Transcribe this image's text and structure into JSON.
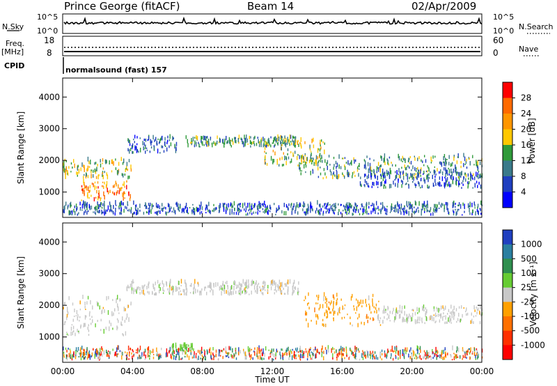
{
  "header": {
    "station": "Prince George (fitACF)",
    "beam": "Beam 14",
    "date": "02/Apr/2009"
  },
  "strip_panels": {
    "nsky_label": "N.Sky",
    "nsky_ticks": [
      "10^5",
      "10^0"
    ],
    "nsearch_label": "N.Search",
    "nsearch_ticks": [
      "10^5",
      "10^0"
    ],
    "freq_label": "Freq.",
    "freq_unit": "[MHz]",
    "freq_ticks": [
      "18",
      "8"
    ],
    "nave_label": "Nave",
    "nave_ticks": [
      "60",
      "0"
    ],
    "cpid_label": "CPID",
    "cpid_text": "normalsound (fast) 157"
  },
  "chart_data": [
    {
      "type": "heatmap",
      "name": "power",
      "ylabel": "Slant Range [km]",
      "yticks": [
        1000,
        2000,
        3000,
        4000
      ],
      "ylim": [
        200,
        4600
      ],
      "xlabel": "",
      "xticks": [
        "00:00",
        "04:00",
        "08:00",
        "12:00",
        "16:00",
        "20:00",
        "00:00"
      ],
      "xlim_hours": [
        0,
        24
      ],
      "colorbar": {
        "label": "Power [dB]",
        "ticks": [
          "28",
          "24",
          "20",
          "16",
          "12",
          "8",
          "4"
        ],
        "colors": [
          "#ff0000",
          "#ff6a00",
          "#ff9600",
          "#ffc800",
          "#2f9a3a",
          "#3a7a8a",
          "#1f3fbf",
          "#0000ff"
        ]
      },
      "regions": [
        {
          "t": [
            0.0,
            3.9
          ],
          "r": [
            1400,
            2000
          ],
          "level": 4
        },
        {
          "t": [
            1.0,
            3.9
          ],
          "r": [
            700,
            1300
          ],
          "level": 2
        },
        {
          "t": [
            0.0,
            24.0
          ],
          "r": [
            250,
            600
          ],
          "level": 6
        },
        {
          "t": [
            3.6,
            6.5
          ],
          "r": [
            2200,
            2700
          ],
          "level": 6
        },
        {
          "t": [
            7.0,
            13.5
          ],
          "r": [
            2400,
            2700
          ],
          "level": 5
        },
        {
          "t": [
            11.5,
            15.0
          ],
          "r": [
            1800,
            2600
          ],
          "level": 4
        },
        {
          "t": [
            13.5,
            24.0
          ],
          "r": [
            1400,
            2100
          ],
          "level": 5
        },
        {
          "t": [
            17.0,
            24.0
          ],
          "r": [
            1100,
            1600
          ],
          "level": 6
        }
      ]
    },
    {
      "type": "heatmap",
      "name": "velocity",
      "ylabel": "Slant Range [km]",
      "yticks": [
        1000,
        2000,
        3000,
        4000
      ],
      "ylim": [
        200,
        4600
      ],
      "xlabel": "Time UT",
      "xticks": [
        "00:00",
        "04:00",
        "08:00",
        "12:00",
        "16:00",
        "20:00",
        "00:00"
      ],
      "xlim_hours": [
        0,
        24
      ],
      "colorbar": {
        "label": "Velocity [m s⁻¹]",
        "ticks": [
          "1000",
          "500",
          "100",
          "25",
          "-25",
          "-100",
          "-500",
          "-1000"
        ],
        "colors": [
          "#2040c0",
          "#2a7fa0",
          "#2f8f4f",
          "#66cc33",
          "#c8c8c8",
          "#ffa000",
          "#ff7000",
          "#ff3000",
          "#ff0000"
        ]
      },
      "regions": [
        {
          "t": [
            0.0,
            3.9
          ],
          "r": [
            1000,
            2200
          ],
          "vel": "25"
        },
        {
          "t": [
            3.6,
            13.5
          ],
          "r": [
            2300,
            2700
          ],
          "vel": "25"
        },
        {
          "t": [
            13.8,
            18.2
          ],
          "r": [
            1300,
            2300
          ],
          "vel": "-100"
        },
        {
          "t": [
            18.0,
            24.0
          ],
          "r": [
            1400,
            1900
          ],
          "vel": "25"
        },
        {
          "t": [
            0.0,
            24.0
          ],
          "r": [
            250,
            600
          ],
          "vel": "mixed"
        },
        {
          "t": [
            6.2,
            7.5
          ],
          "r": [
            500,
            700
          ],
          "vel": "100"
        }
      ]
    }
  ]
}
